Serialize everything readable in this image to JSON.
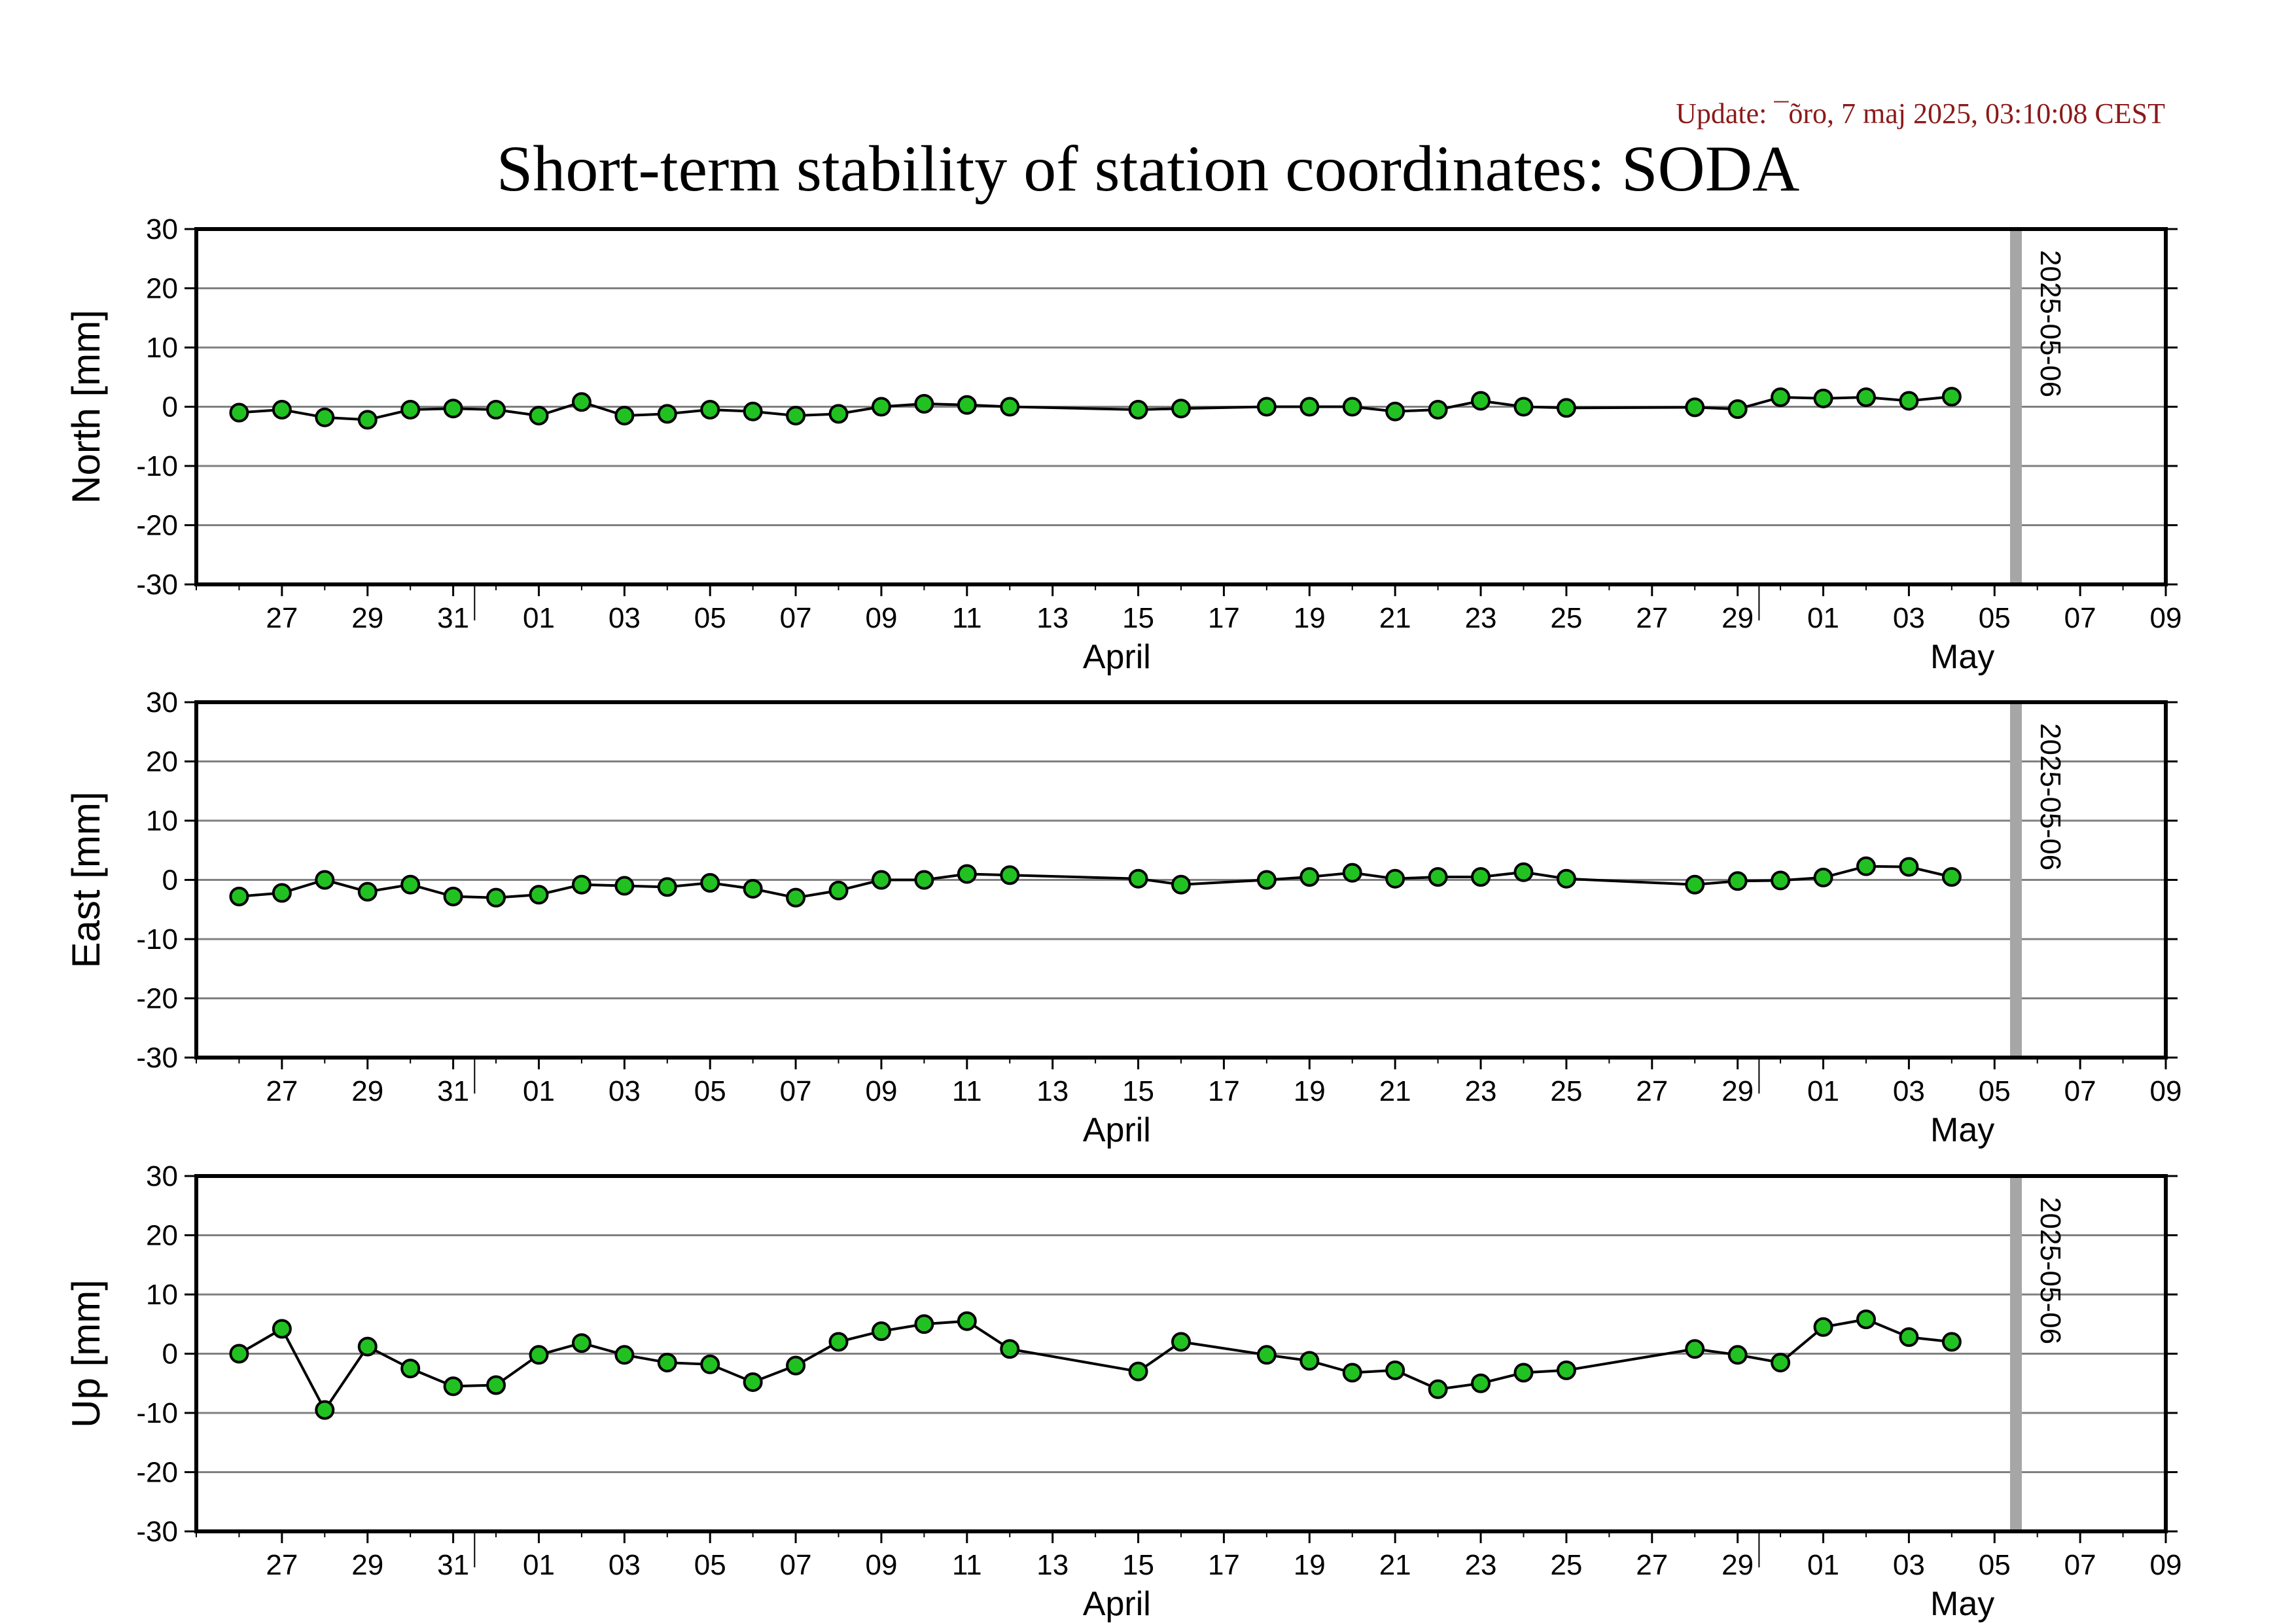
{
  "header": {
    "update_text": "Update: ¯õro, 7 maj 2025, 03:10:08 CEST",
    "title": "Short-term stability of station coordinates: SODA"
  },
  "colors": {
    "marker_fill": "#22c122",
    "marker_stroke": "#000000",
    "line": "#000000",
    "grid": "#808080",
    "marker_band": "#a6a6a6",
    "update_text": "#8b1a1a"
  },
  "chart_data": [
    {
      "type": "line",
      "ylabel": "North [mm]",
      "ylim": [
        -30,
        30
      ],
      "yticks": [
        30,
        20,
        10,
        0,
        -10,
        -20,
        -30
      ],
      "xlim": [
        "2025-03-25",
        "2025-05-10"
      ],
      "x_tick_labels": [
        "27",
        "29",
        "31",
        "01",
        "03",
        "05",
        "07",
        "09",
        "11",
        "13",
        "15",
        "17",
        "19",
        "21",
        "23",
        "25",
        "27",
        "29",
        "01",
        "03",
        "05",
        "07",
        "09"
      ],
      "month_labels": [
        "April",
        "May"
      ],
      "marker_date_label": "2025-05-06",
      "grid": true,
      "series": [
        {
          "x": [
            "2025-03-26",
            "2025-03-27",
            "2025-03-28",
            "2025-03-29",
            "2025-03-30",
            "2025-03-31",
            "2025-04-01",
            "2025-04-02",
            "2025-04-03",
            "2025-04-04",
            "2025-04-05",
            "2025-04-06",
            "2025-04-07",
            "2025-04-08",
            "2025-04-09",
            "2025-04-10",
            "2025-04-11",
            "2025-04-12",
            "2025-04-13",
            "2025-04-16",
            "2025-04-17",
            "2025-04-19",
            "2025-04-20",
            "2025-04-21",
            "2025-04-22",
            "2025-04-23",
            "2025-04-24",
            "2025-04-25",
            "2025-04-26",
            "2025-04-29",
            "2025-04-30",
            "2025-05-01",
            "2025-05-02",
            "2025-05-03",
            "2025-05-04",
            "2025-05-05"
          ],
          "y": [
            -1,
            -0.5,
            -1.8,
            -2.2,
            -0.5,
            -0.3,
            -0.5,
            -1.5,
            0.8,
            -1.5,
            -1.2,
            -0.5,
            -0.8,
            -1.5,
            -1.2,
            0,
            0.5,
            0.3,
            0,
            -0.5,
            -0.3,
            0,
            0,
            0,
            -0.8,
            -0.5,
            1,
            0,
            -0.2,
            -0.1,
            -0.4,
            1.6,
            1.4,
            1.6,
            1,
            1.7
          ]
        }
      ]
    },
    {
      "type": "line",
      "ylabel": "East [mm]",
      "ylim": [
        -30,
        30
      ],
      "yticks": [
        30,
        20,
        10,
        0,
        -10,
        -20,
        -30
      ],
      "xlim": [
        "2025-03-25",
        "2025-05-10"
      ],
      "x_tick_labels": [
        "27",
        "29",
        "31",
        "01",
        "03",
        "05",
        "07",
        "09",
        "11",
        "13",
        "15",
        "17",
        "19",
        "21",
        "23",
        "25",
        "27",
        "29",
        "01",
        "03",
        "05",
        "07",
        "09"
      ],
      "month_labels": [
        "April",
        "May"
      ],
      "marker_date_label": "2025-05-06",
      "grid": true,
      "series": [
        {
          "x": [
            "2025-03-26",
            "2025-03-27",
            "2025-03-28",
            "2025-03-29",
            "2025-03-30",
            "2025-03-31",
            "2025-04-01",
            "2025-04-02",
            "2025-04-03",
            "2025-04-04",
            "2025-04-05",
            "2025-04-06",
            "2025-04-07",
            "2025-04-08",
            "2025-04-09",
            "2025-04-10",
            "2025-04-11",
            "2025-04-12",
            "2025-04-13",
            "2025-04-16",
            "2025-04-17",
            "2025-04-19",
            "2025-04-20",
            "2025-04-21",
            "2025-04-22",
            "2025-04-23",
            "2025-04-24",
            "2025-04-25",
            "2025-04-26",
            "2025-04-29",
            "2025-04-30",
            "2025-05-01",
            "2025-05-02",
            "2025-05-03",
            "2025-05-04",
            "2025-05-05"
          ],
          "y": [
            -2.8,
            -2.2,
            0,
            -2,
            -0.8,
            -2.8,
            -3,
            -2.5,
            -0.8,
            -1,
            -1.2,
            -0.5,
            -1.5,
            -3,
            -1.8,
            0,
            0,
            1,
            0.8,
            0.2,
            -0.8,
            0,
            0.5,
            1.2,
            0.2,
            0.5,
            0.5,
            1.3,
            0.2,
            -0.8,
            -0.2,
            -0.1,
            0.4,
            2.3,
            2.2,
            0.5
          ]
        }
      ]
    },
    {
      "type": "line",
      "ylabel": "Up [mm]",
      "ylim": [
        -30,
        30
      ],
      "yticks": [
        30,
        20,
        10,
        0,
        -10,
        -20,
        -30
      ],
      "xlim": [
        "2025-03-25",
        "2025-05-10"
      ],
      "x_tick_labels": [
        "27",
        "29",
        "31",
        "01",
        "03",
        "05",
        "07",
        "09",
        "11",
        "13",
        "15",
        "17",
        "19",
        "21",
        "23",
        "25",
        "27",
        "29",
        "01",
        "03",
        "05",
        "07",
        "09"
      ],
      "month_labels": [
        "April",
        "May"
      ],
      "marker_date_label": "2025-05-06",
      "grid": true,
      "series": [
        {
          "x": [
            "2025-03-26",
            "2025-03-27",
            "2025-03-28",
            "2025-03-29",
            "2025-03-30",
            "2025-03-31",
            "2025-04-01",
            "2025-04-02",
            "2025-04-03",
            "2025-04-04",
            "2025-04-05",
            "2025-04-06",
            "2025-04-07",
            "2025-04-08",
            "2025-04-09",
            "2025-04-10",
            "2025-04-11",
            "2025-04-12",
            "2025-04-13",
            "2025-04-16",
            "2025-04-17",
            "2025-04-19",
            "2025-04-20",
            "2025-04-21",
            "2025-04-22",
            "2025-04-23",
            "2025-04-24",
            "2025-04-25",
            "2025-04-26",
            "2025-04-29",
            "2025-04-30",
            "2025-05-01",
            "2025-05-02",
            "2025-05-03",
            "2025-05-04",
            "2025-05-05"
          ],
          "y": [
            0,
            4.2,
            -9.5,
            1.2,
            -2.5,
            -5.5,
            -5.3,
            -0.2,
            1.8,
            -0.2,
            -1.5,
            -1.8,
            -4.8,
            -2,
            2,
            3.8,
            5,
            5.5,
            0.8,
            -3,
            2,
            -0.2,
            -1.2,
            -3.2,
            -2.8,
            -6,
            -5,
            -3.2,
            -2.8,
            0.8,
            -0.2,
            -1.5,
            4.5,
            5.8,
            2.8,
            2
          ]
        }
      ]
    }
  ]
}
